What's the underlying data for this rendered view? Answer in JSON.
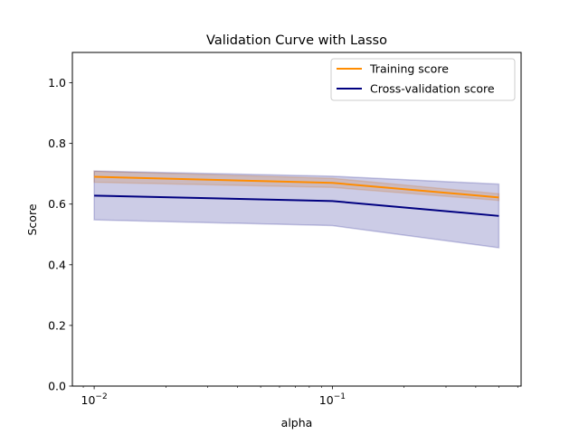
{
  "chart_data": {
    "type": "line",
    "title": "Validation Curve with Lasso",
    "xlabel": "alpha",
    "ylabel": "Score",
    "xscale": "log",
    "xlim": [
      0.0081,
      0.62
    ],
    "ylim": [
      0.0,
      1.1
    ],
    "yticks": [
      0.0,
      0.2,
      0.4,
      0.6,
      0.8,
      1.0
    ],
    "ytick_labels": [
      "0.0",
      "0.2",
      "0.4",
      "0.6",
      "0.8",
      "1.0"
    ],
    "xticks": [
      {
        "value": 0.01,
        "base": "10",
        "exp": "−2"
      },
      {
        "value": 0.1,
        "base": "10",
        "exp": "−1"
      }
    ],
    "x": [
      0.01,
      0.1,
      0.5
    ],
    "series": [
      {
        "name": "Training score",
        "color": "#ff8c00",
        "values": [
          0.69,
          0.67,
          0.622
        ],
        "band_lower": [
          0.672,
          0.655,
          0.612
        ],
        "band_upper": [
          0.708,
          0.685,
          0.634
        ],
        "band_color": "#ff8c00"
      },
      {
        "name": "Cross-validation score",
        "color": "#000080",
        "values": [
          0.628,
          0.61,
          0.561
        ],
        "band_lower": [
          0.548,
          0.529,
          0.456
        ],
        "band_upper": [
          0.709,
          0.692,
          0.666
        ],
        "band_color": "#000080"
      }
    ],
    "legend_position": "upper-right",
    "grid": false
  }
}
